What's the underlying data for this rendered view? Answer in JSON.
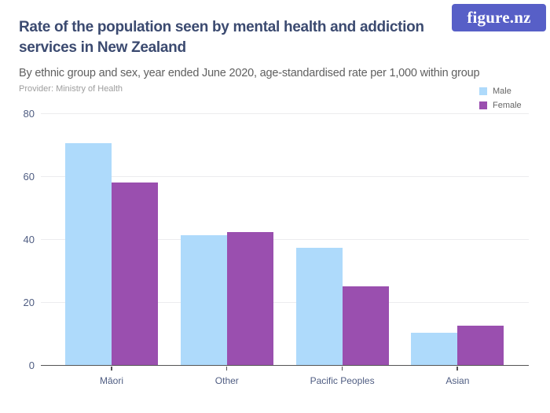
{
  "header": {
    "title": "Rate of the population seen by mental health and addiction services in New Zealand",
    "title_lines": [
      "Rate of the population seen by mental health and addiction",
      "services in New Zealand"
    ],
    "subtitle": "By ethnic group and sex, year ended June 2020, age-standardised rate per 1,000 within group",
    "provider": "Provider: Ministry of Health",
    "logo_text": "figure.nz"
  },
  "colors": {
    "male_bar": "#AEDAFB",
    "female_bar": "#9A4FAF",
    "logo_bg": "#575FC7",
    "title_text": "#3B4A70",
    "axis_label_text": "#4F5D82",
    "gridline": "#ECECEE",
    "axis_line": "#555555"
  },
  "legend": {
    "items": [
      {
        "label": "Male",
        "color": "#AEDAFB"
      },
      {
        "label": "Female",
        "color": "#9A4FAF"
      }
    ]
  },
  "chart_data": {
    "type": "bar",
    "title": "Rate of the population seen by mental health and addiction services in New Zealand",
    "subtitle": "By ethnic group and sex, year ended June 2020, age-standardised rate per 1,000 within group",
    "categories": [
      "Māori",
      "Other",
      "Pacific Peoples",
      "Asian"
    ],
    "series": [
      {
        "name": "Male",
        "color": "#AEDAFB",
        "values": [
          70.4,
          41.2,
          37.3,
          10.2
        ]
      },
      {
        "name": "Female",
        "color": "#9A4FAF",
        "values": [
          58.0,
          42.2,
          25.1,
          12.4
        ]
      }
    ],
    "xlabel": "",
    "ylabel": "",
    "ylim": [
      0,
      80
    ],
    "yticks": [
      0,
      20,
      40,
      60,
      80
    ],
    "grid": true,
    "legend_position": "top-right"
  }
}
